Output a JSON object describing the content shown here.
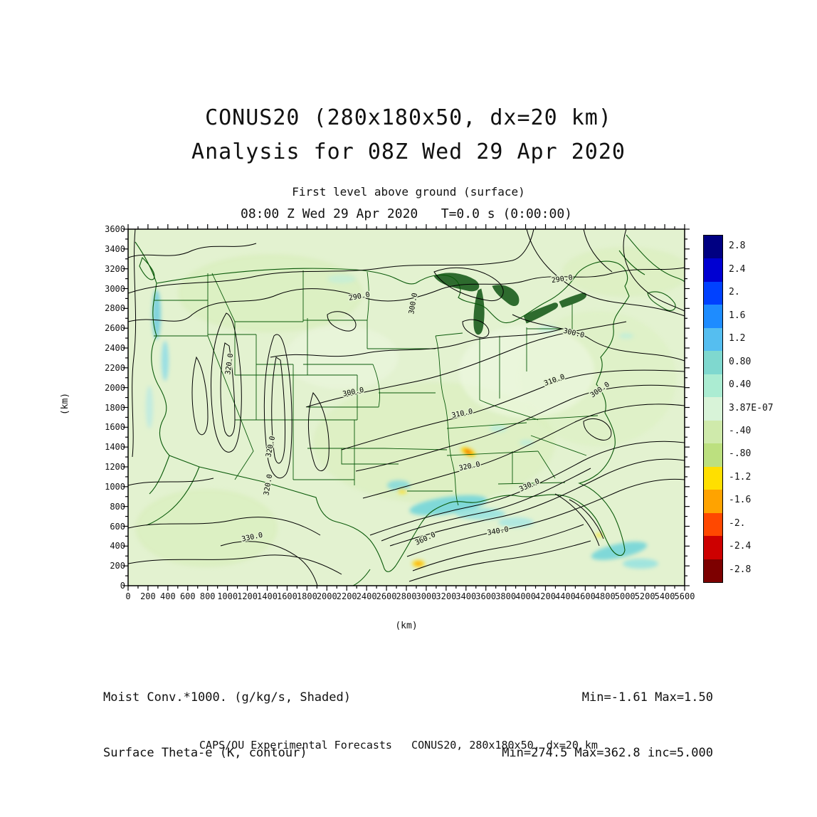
{
  "header": {
    "title": "CONUS20 (280x180x50, dx=20 km)",
    "subtitle": "Analysis for 08Z Wed 29 Apr 2020",
    "level": "First level above ground (surface)",
    "valid_time": "08:00 Z Wed 29 Apr 2020   T=0.0 s (0:00:00)"
  },
  "axes": {
    "x_label": "(km)",
    "y_label": "(km)"
  },
  "legend": {
    "shaded_label": "Moist Conv.*1000. (g/kg/s, Shaded)",
    "contour_label": "Surface Theta-e (K, contour)",
    "shaded_stats": "Min=-1.61 Max=1.50",
    "contour_stats": "Min=274.5 Max=362.8 inc=5.000"
  },
  "footer": {
    "text": "CAPS/OU Experimental Forecasts   CONUS20, 280x180x50, dx=20 km"
  },
  "chart_data": {
    "type": "heatmap",
    "title": "CONUS20 (280x180x50, dx=20 km)",
    "subtitle": "Analysis for 08Z Wed 29 Apr 2020",
    "level": "First level above ground (surface)",
    "valid_time": "08:00 Z Wed 29 Apr 2020   T=0.0 s (0:00:00)",
    "xlabel": "(km)",
    "ylabel": "(km)",
    "xlim": [
      0,
      5600
    ],
    "ylim": [
      0,
      3600
    ],
    "grid": false,
    "x_ticks": [
      0,
      200,
      400,
      600,
      800,
      1000,
      1200,
      1400,
      1600,
      1800,
      2000,
      2200,
      2400,
      2600,
      2800,
      3000,
      3200,
      3400,
      3600,
      3800,
      4000,
      4200,
      4400,
      4600,
      4800,
      5000,
      5200,
      5400,
      5600
    ],
    "y_ticks": [
      0,
      200,
      400,
      600,
      800,
      1000,
      1200,
      1400,
      1600,
      1800,
      2000,
      2200,
      2400,
      2600,
      2800,
      3000,
      3200,
      3400,
      3600
    ],
    "shaded_field": {
      "name": "Moist Conv.*1000.",
      "units": "g/kg/s",
      "style": "shaded",
      "min": -1.61,
      "max": 1.5
    },
    "contour_field": {
      "name": "Surface Theta-e",
      "units": "K",
      "style": "contour",
      "min": 274.5,
      "max": 362.8,
      "interval": 5.0
    },
    "colorbar": {
      "position": "right",
      "tick_labels": [
        "2.8",
        "2.4",
        "2.",
        "1.6",
        "1.2",
        "0.80",
        "0.40",
        "3.87E-07",
        "-.40",
        "-.80",
        "-1.2",
        "-1.6",
        "-2.",
        "-2.4",
        "-2.8"
      ],
      "cell_colors": [
        "#000082",
        "#0000d2",
        "#0041ff",
        "#1e8cff",
        "#55bef0",
        "#7fd8cf",
        "#abecd2",
        "#d8f3d8",
        "#cfeaab",
        "#bce07f",
        "#ffdf00",
        "#ffa300",
        "#ff4800",
        "#cd0000",
        "#7d0000"
      ]
    },
    "contour_labels": [
      {
        "value": "290.0",
        "x": 2330,
        "y": 2900,
        "rot": -10
      },
      {
        "value": "290.0",
        "x": 4370,
        "y": 3075,
        "rot": -8
      },
      {
        "value": "300.0",
        "x": 2890,
        "y": 2845,
        "rot": -80
      },
      {
        "value": "300.0",
        "x": 2270,
        "y": 1935,
        "rot": -12
      },
      {
        "value": "300.0",
        "x": 4480,
        "y": 2530,
        "rot": 13
      },
      {
        "value": "300.0",
        "x": 4760,
        "y": 1960,
        "rot": -35
      },
      {
        "value": "310.0",
        "x": 3366,
        "y": 1718,
        "rot": -12
      },
      {
        "value": "310.0",
        "x": 4297,
        "y": 2055,
        "rot": -20
      },
      {
        "value": "320.0",
        "x": 1040,
        "y": 2235,
        "rot": -82
      },
      {
        "value": "320.0",
        "x": 1455,
        "y": 1400,
        "rot": -78
      },
      {
        "value": "320.0",
        "x": 3440,
        "y": 1185,
        "rot": -12
      },
      {
        "value": "320.0",
        "x": 1430,
        "y": 1015,
        "rot": -80
      },
      {
        "value": "330.0",
        "x": 1253,
        "y": 470,
        "rot": -12
      },
      {
        "value": "330.0",
        "x": 4047,
        "y": 995,
        "rot": -25
      },
      {
        "value": "340.0",
        "x": 3725,
        "y": 530,
        "rot": -10
      },
      {
        "value": "360.0",
        "x": 3000,
        "y": 455,
        "rot": -25
      }
    ]
  }
}
